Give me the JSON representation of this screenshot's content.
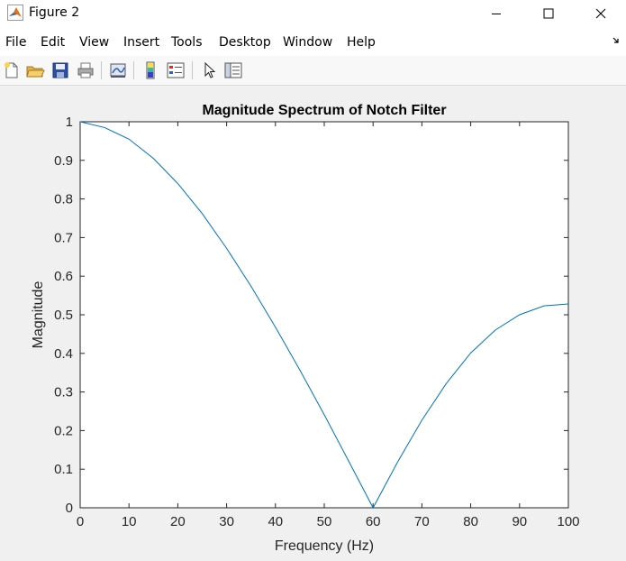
{
  "window": {
    "title": "Figure 2",
    "controls": [
      "minimize",
      "maximize",
      "close"
    ]
  },
  "menu": [
    "File",
    "Edit",
    "View",
    "Insert",
    "Tools",
    "Desktop",
    "Window",
    "Help"
  ],
  "menu_overflow_icon": "dock-arrow-icon",
  "toolbar": [
    {
      "name": "new-figure-icon"
    },
    {
      "name": "open-file-icon"
    },
    {
      "name": "save-icon"
    },
    {
      "name": "print-icon"
    },
    {
      "name": "link-plot-icon"
    },
    {
      "name": "insert-colorbar-icon"
    },
    {
      "name": "insert-legend-icon"
    },
    {
      "name": "edit-plot-pointer-icon"
    },
    {
      "name": "property-inspector-icon"
    }
  ],
  "chart_data": {
    "type": "line",
    "title": "Magnitude Spectrum of Notch Filter",
    "xlabel": "Frequency (Hz)",
    "ylabel": "Magnitude",
    "xlim": [
      0,
      100
    ],
    "ylim": [
      0,
      1
    ],
    "xticks": [
      0,
      10,
      20,
      30,
      40,
      50,
      60,
      70,
      80,
      90,
      100
    ],
    "yticks": [
      0,
      0.1,
      0.2,
      0.3,
      0.4,
      0.5,
      0.6,
      0.7,
      0.8,
      0.9,
      1
    ],
    "grid": false,
    "line_color": "#0072bd",
    "series": [
      {
        "x": [
          0,
          5,
          10,
          15,
          20,
          25,
          30,
          35,
          40,
          45,
          50,
          55,
          60,
          65,
          70,
          75,
          80,
          85,
          90,
          95,
          100
        ],
        "y": [
          1.0,
          0.985,
          0.955,
          0.905,
          0.84,
          0.762,
          0.672,
          0.574,
          0.468,
          0.357,
          0.241,
          0.121,
          0.0,
          0.118,
          0.227,
          0.322,
          0.401,
          0.46,
          0.5,
          0.523,
          0.528
        ]
      }
    ]
  }
}
